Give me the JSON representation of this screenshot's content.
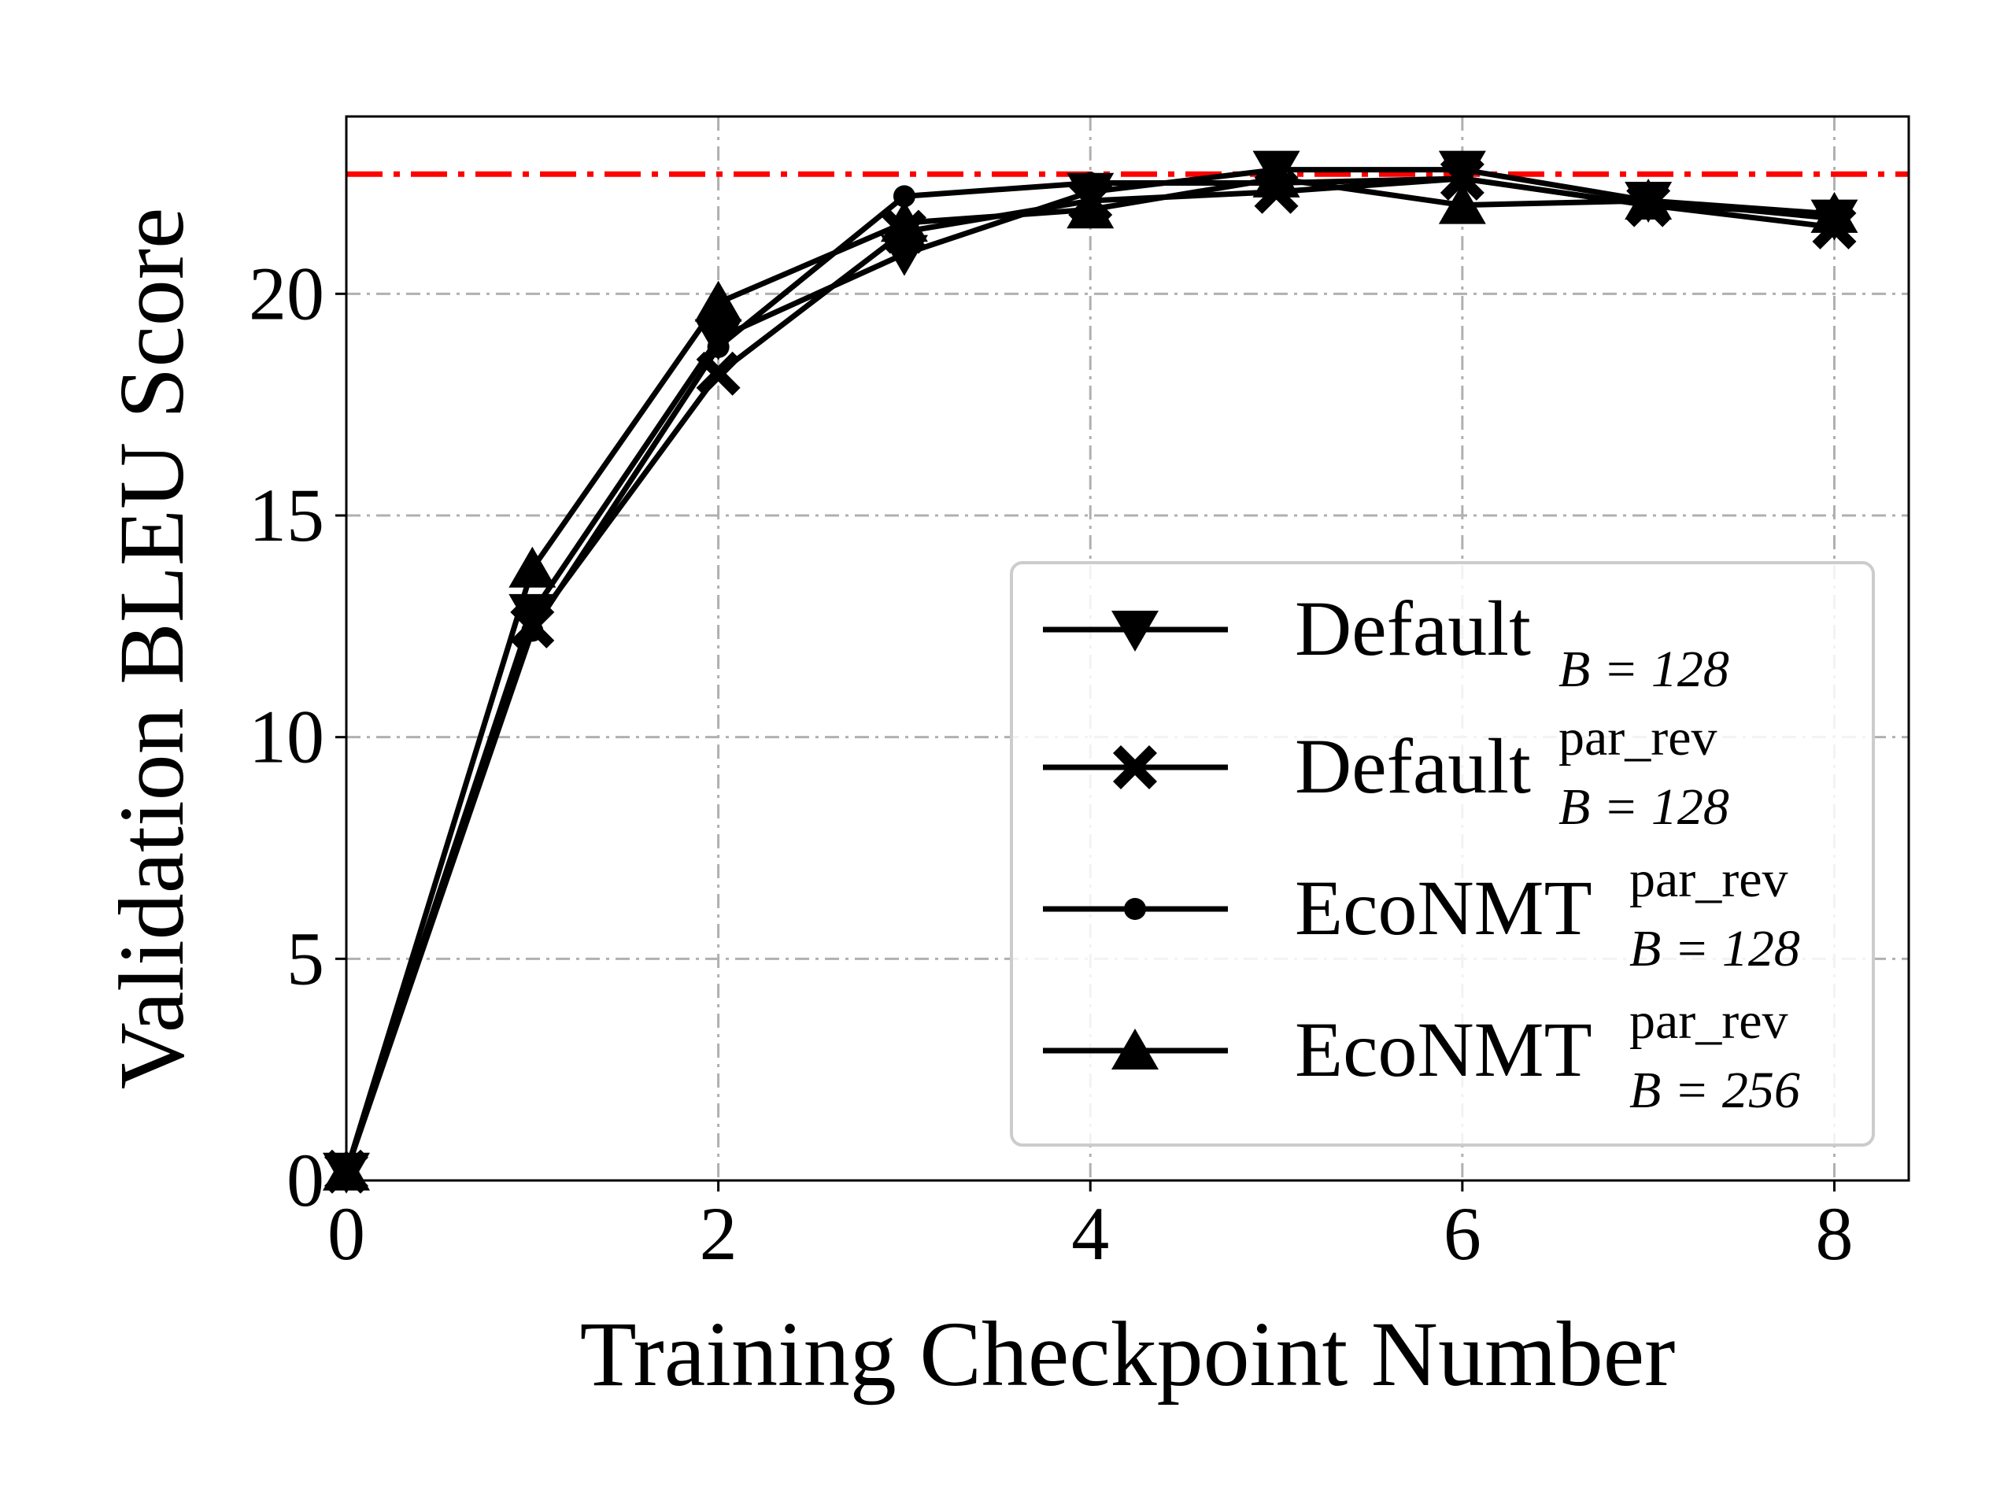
{
  "chart_data": {
    "type": "line",
    "title": "",
    "xlabel": "Training Checkpoint Number",
    "ylabel": "Validation BLEU Score",
    "xlim": [
      0,
      8.4
    ],
    "ylim": [
      0,
      24
    ],
    "x_ticks": [
      0,
      2,
      4,
      6,
      8
    ],
    "y_ticks": [
      0,
      5,
      10,
      15,
      20
    ],
    "grid": true,
    "legend_position": "lower-right",
    "reference_line": {
      "y": 22.7,
      "color": "#ff0000",
      "style": "dash-dot"
    },
    "x": [
      0,
      1,
      2,
      3,
      4,
      5,
      6,
      7,
      8
    ],
    "series": [
      {
        "name_base": "Default",
        "name_sup": "",
        "name_sub": "B = 128",
        "marker": "triangle-down",
        "values": [
          0.2,
          12.8,
          19.0,
          20.9,
          22.3,
          22.8,
          22.8,
          22.1,
          21.7
        ]
      },
      {
        "name_base": "Default",
        "name_sup": "par_rev",
        "name_sub": "B = 128",
        "marker": "x-filled",
        "values": [
          0.2,
          12.5,
          18.2,
          21.4,
          22.1,
          22.3,
          22.6,
          22.0,
          21.5
        ]
      },
      {
        "name_base": "EcoNMT",
        "name_sup": "par_rev",
        "name_sub": "B = 128",
        "marker": "circle",
        "values": [
          0.2,
          12.4,
          18.8,
          22.2,
          22.5,
          22.5,
          22.6,
          22.0,
          21.8
        ]
      },
      {
        "name_base": "EcoNMT",
        "name_sup": "par_rev",
        "name_sub": "B = 256",
        "marker": "triangle-up",
        "values": [
          0.2,
          13.8,
          19.8,
          21.6,
          21.9,
          22.6,
          22.0,
          22.1,
          21.8
        ]
      }
    ]
  }
}
